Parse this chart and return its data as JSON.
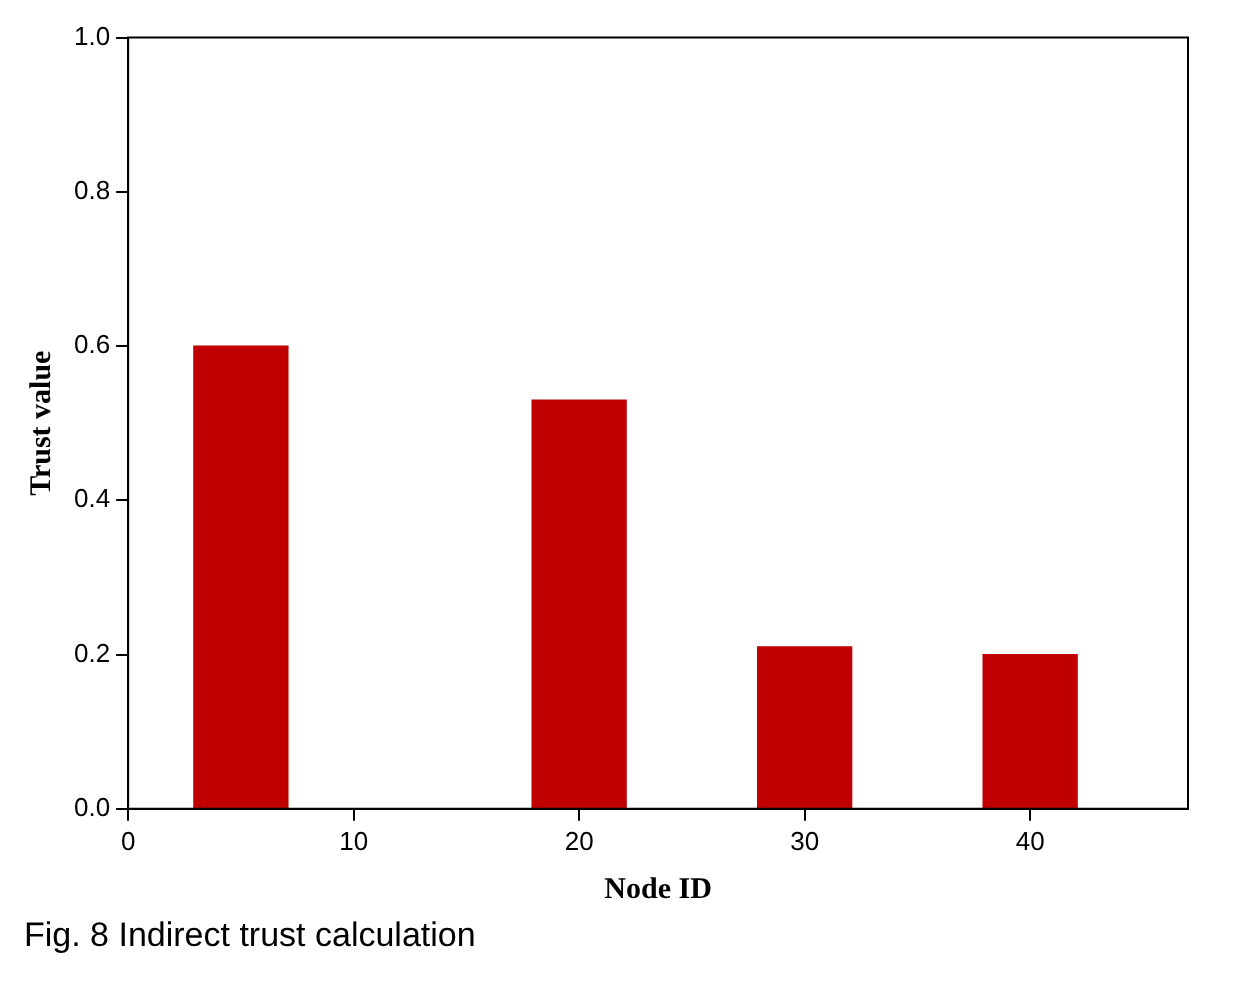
{
  "chart_data": {
    "type": "bar",
    "xlabel": "Node ID",
    "ylabel": "Trust value",
    "x": [
      5,
      20,
      30,
      40
    ],
    "values": [
      0.6,
      0.53,
      0.21,
      0.2
    ],
    "color": "#c00000",
    "xlim": [
      0,
      47
    ],
    "xticks": [
      0,
      10,
      20,
      30,
      40
    ],
    "ylim": [
      0,
      1.0
    ],
    "yticks": [
      {
        "value": 0,
        "label": "0.0"
      },
      {
        "value": 0.2,
        "label": "0.2"
      },
      {
        "value": 0.4,
        "label": "0.4"
      },
      {
        "value": 0.6,
        "label": "0.6"
      },
      {
        "value": 0.8,
        "label": "0.8"
      },
      {
        "value": 1,
        "label": "1.0"
      }
    ],
    "grid": false,
    "legend": false,
    "annotations": [
      "Fig. 8 Indirect trust calculation"
    ]
  }
}
